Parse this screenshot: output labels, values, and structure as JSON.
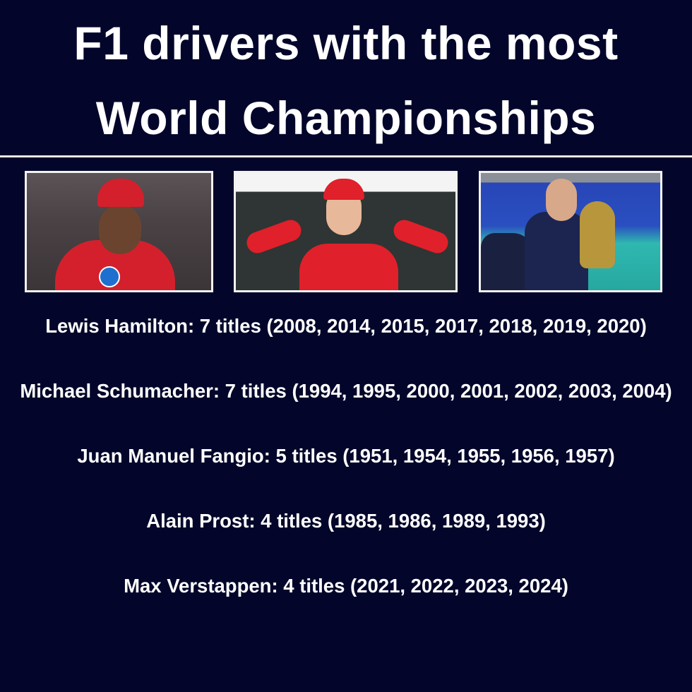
{
  "header": {
    "title_line1": "F1 drivers with the most",
    "title_line2": "World Championships"
  },
  "photos": [
    {
      "subject": "Lewis Hamilton"
    },
    {
      "subject": "Michael Schumacher"
    },
    {
      "subject": "Max Verstappen"
    }
  ],
  "drivers": [
    {
      "text": "Lewis Hamilton: 7 titles (2008, 2014, 2015, 2017, 2018, 2019, 2020)"
    },
    {
      "text": "Michael Schumacher: 7 titles (1994, 1995, 2000, 2001, 2002, 2003, 2004)"
    },
    {
      "text": "Juan Manuel Fangio: 5 titles (1951, 1954, 1955, 1956, 1957)"
    },
    {
      "text": "Alain Prost: 4 titles (1985, 1986, 1989, 1993)"
    },
    {
      "text": "Max Verstappen: 4 titles (2021, 2022, 2023, 2024)"
    }
  ],
  "colors": {
    "background": "#03062a",
    "text": "#ffffff",
    "accent_red": "#d81e2a"
  }
}
